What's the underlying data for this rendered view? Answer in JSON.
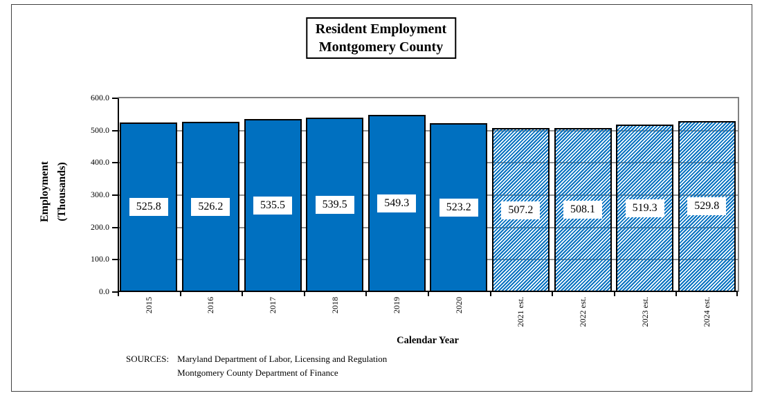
{
  "chart": {
    "title": {
      "line1": "Resident Employment",
      "line2": "Montgomery County"
    },
    "y_axis": {
      "label_line1": "Employment",
      "label_line2": "(Thousands)"
    },
    "x_axis": {
      "label": "Calendar Year"
    },
    "footer": {
      "sources_label": "SOURCES:",
      "source_line1": "Maryland Department of Labor, Licensing and Regulation",
      "source_line2": "Montgomery County Department of Finance"
    }
  },
  "chart_data": {
    "type": "bar",
    "title": "Resident Employment Montgomery County",
    "xlabel": "Calendar Year",
    "ylabel": "Employment (Thousands)",
    "categories": [
      "2015",
      "2016",
      "2017",
      "2018",
      "2019",
      "2020",
      "2021 est.",
      "2022 est.",
      "2023 est.",
      "2024 est."
    ],
    "values": [
      525.8,
      526.2,
      535.5,
      539.5,
      549.3,
      523.2,
      507.2,
      508.1,
      519.3,
      529.8
    ],
    "data_labels": [
      "525.8",
      "526.2",
      "535.5",
      "539.5",
      "549.3",
      "523.2",
      "507.2",
      "508.1",
      "519.3",
      "529.8"
    ],
    "bar_patterns": [
      "solid",
      "solid",
      "solid",
      "solid",
      "solid",
      "solid",
      "hatched",
      "hatched",
      "hatched",
      "hatched"
    ],
    "ylim": [
      0,
      600
    ],
    "ytick_interval": 100,
    "ytick_labels": [
      "600.0",
      "500.0",
      "400.0",
      "300.0",
      "200.0",
      "100.0",
      "0.0"
    ],
    "grid": true,
    "legend_position": "none",
    "colors": {
      "bar_fill": "#0070C0",
      "bar_border": "#000000",
      "gridline": "#909090",
      "plot_border": "#808080",
      "axis": "#000000",
      "label_background": "#FFFFFF",
      "frame_border": "#3F3F3F"
    }
  }
}
